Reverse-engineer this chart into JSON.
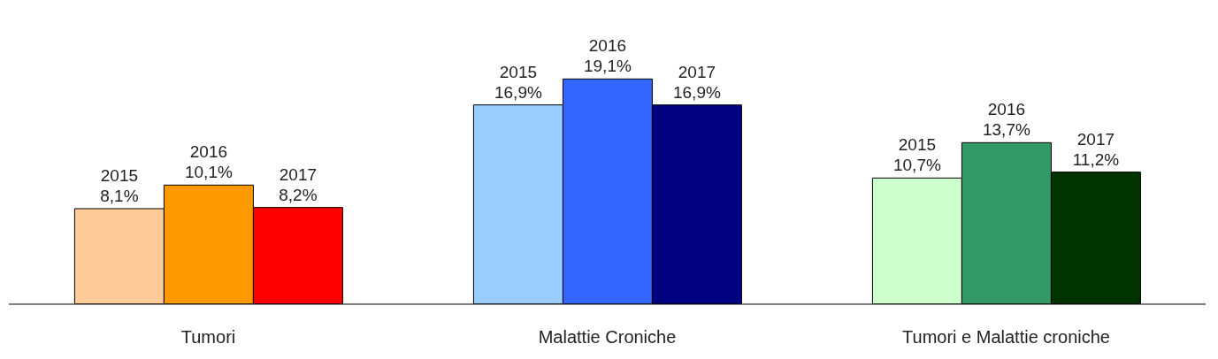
{
  "chart_data": {
    "type": "bar",
    "categories": [
      "Tumori",
      "Malattie Croniche",
      "Tumori e Malattie croniche"
    ],
    "series": [
      {
        "name": "2015",
        "colors": [
          "#ffcc99",
          "#99ccff",
          "#ccffcc"
        ],
        "values": [
          8.1,
          16.9,
          10.7
        ],
        "value_labels": [
          "8,1%",
          "16,9%",
          "10,7%"
        ]
      },
      {
        "name": "2016",
        "colors": [
          "#ff9900",
          "#3366ff",
          "#339966"
        ],
        "values": [
          10.1,
          19.1,
          13.7
        ],
        "value_labels": [
          "10,1%",
          "19,1%",
          "13,7%"
        ]
      },
      {
        "name": "2017",
        "colors": [
          "#ff0000",
          "#000080",
          "#003300"
        ],
        "values": [
          8.2,
          16.9,
          11.2
        ],
        "value_labels": [
          "8,2%",
          "16,9%",
          "11,2%"
        ]
      }
    ],
    "legend": false,
    "grid": false
  }
}
